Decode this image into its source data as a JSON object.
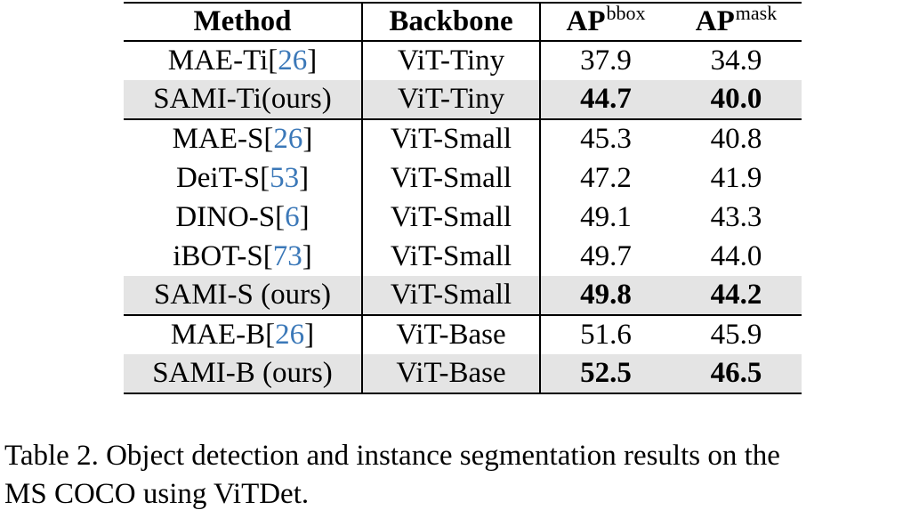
{
  "table": {
    "headers": {
      "method": "Method",
      "backbone": "Backbone",
      "ap_bbox_base": "AP",
      "ap_bbox_sup": "bbox",
      "ap_mask_base": "AP",
      "ap_mask_sup": "mask"
    },
    "rows": [
      {
        "method": "MAE-Ti",
        "cite": "26",
        "cite_open": "[",
        "cite_close": "]",
        "backbone": "ViT-Tiny",
        "ap_bbox": "37.9",
        "ap_mask": "34.9"
      },
      {
        "method": "SAMI-Ti(ours)",
        "backbone": "ViT-Tiny",
        "ap_bbox": "44.7",
        "ap_mask": "40.0"
      },
      {
        "method": "MAE-S",
        "cite": "26",
        "cite_open": "[",
        "cite_close": "]",
        "backbone": "ViT-Small",
        "ap_bbox": "45.3",
        "ap_mask": "40.8"
      },
      {
        "method": "DeiT-S",
        "cite": "53",
        "cite_open": "[",
        "cite_close": "]",
        "backbone": "ViT-Small",
        "ap_bbox": "47.2",
        "ap_mask": "41.9"
      },
      {
        "method": "DINO-S",
        "cite": "6",
        "cite_open": "[",
        "cite_close": "]",
        "backbone": "ViT-Small",
        "ap_bbox": "49.1",
        "ap_mask": "43.3"
      },
      {
        "method": "iBOT-S",
        "cite": "73",
        "cite_open": "[",
        "cite_close": "]",
        "backbone": "ViT-Small",
        "ap_bbox": "49.7",
        "ap_mask": "44.0"
      },
      {
        "method": "SAMI-S (ours)",
        "backbone": "ViT-Small",
        "ap_bbox": "49.8",
        "ap_mask": "44.2"
      },
      {
        "method": "MAE-B",
        "cite": "26",
        "cite_open": "[",
        "cite_close": "]",
        "backbone": "ViT-Base",
        "ap_bbox": "51.6",
        "ap_mask": "45.9"
      },
      {
        "method": "SAMI-B (ours)",
        "backbone": "ViT-Base",
        "ap_bbox": "52.5",
        "ap_mask": "46.5"
      }
    ]
  },
  "caption": {
    "line1": "Table 2. Object detection and instance segmentation results on the",
    "line2": "MS COCO using ViTDet."
  }
}
